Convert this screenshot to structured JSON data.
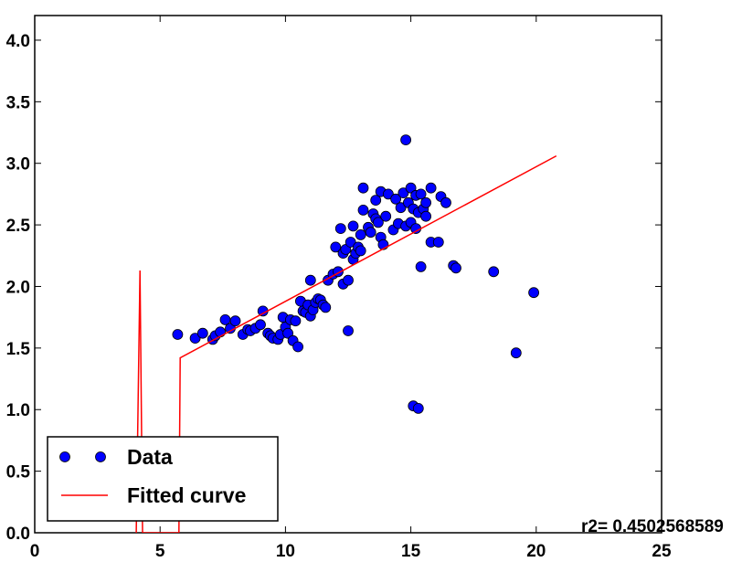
{
  "chart_data": {
    "type": "scatter",
    "title": "",
    "xlabel": "",
    "ylabel": "",
    "xlim": [
      0,
      25
    ],
    "ylim": [
      0.0,
      4.2
    ],
    "xticks": [
      0,
      5,
      10,
      15,
      20,
      25
    ],
    "xtick_labels": [
      "0",
      "5",
      "10",
      "15",
      "20",
      "25"
    ],
    "yticks": [
      0.0,
      0.5,
      1.0,
      1.5,
      2.0,
      2.5,
      3.0,
      3.5,
      4.0
    ],
    "ytick_labels": [
      "0.0",
      "0.5",
      "1.0",
      "1.5",
      "2.0",
      "2.5",
      "3.0",
      "3.5",
      "4.0"
    ],
    "grid": false,
    "legend": {
      "placement": "bottom-left",
      "entries": [
        {
          "label": "Data",
          "marker": "circle",
          "color": "#0000ff"
        },
        {
          "label": "Fitted curve",
          "marker": "line",
          "color": "#ff0000"
        }
      ]
    },
    "annotation": "r2= 0.4502568589",
    "series": [
      {
        "name": "Data",
        "kind": "scatter",
        "color": "#0000ff",
        "points": [
          [
            5.7,
            1.61
          ],
          [
            6.4,
            1.58
          ],
          [
            6.7,
            1.62
          ],
          [
            7.1,
            1.57
          ],
          [
            7.2,
            1.6
          ],
          [
            7.4,
            1.63
          ],
          [
            7.6,
            1.73
          ],
          [
            7.8,
            1.66
          ],
          [
            8.0,
            1.72
          ],
          [
            8.3,
            1.61
          ],
          [
            8.5,
            1.65
          ],
          [
            8.6,
            1.64
          ],
          [
            8.8,
            1.66
          ],
          [
            9.0,
            1.69
          ],
          [
            9.1,
            1.8
          ],
          [
            9.3,
            1.62
          ],
          [
            9.4,
            1.6
          ],
          [
            9.5,
            1.58
          ],
          [
            9.7,
            1.57
          ],
          [
            9.8,
            1.61
          ],
          [
            9.9,
            1.75
          ],
          [
            10.0,
            1.67
          ],
          [
            10.1,
            1.62
          ],
          [
            10.2,
            1.73
          ],
          [
            10.3,
            1.56
          ],
          [
            10.4,
            1.72
          ],
          [
            10.5,
            1.51
          ],
          [
            10.6,
            1.88
          ],
          [
            10.7,
            1.8
          ],
          [
            10.8,
            1.79
          ],
          [
            10.9,
            1.85
          ],
          [
            11.0,
            1.76
          ],
          [
            11.0,
            2.05
          ],
          [
            11.1,
            1.81
          ],
          [
            11.2,
            1.87
          ],
          [
            11.3,
            1.9
          ],
          [
            11.4,
            1.89
          ],
          [
            11.5,
            1.85
          ],
          [
            11.6,
            1.83
          ],
          [
            11.7,
            2.05
          ],
          [
            11.9,
            2.1
          ],
          [
            12.0,
            2.32
          ],
          [
            12.1,
            2.12
          ],
          [
            12.2,
            2.47
          ],
          [
            12.3,
            2.27
          ],
          [
            12.3,
            2.02
          ],
          [
            12.4,
            2.3
          ],
          [
            12.5,
            2.05
          ],
          [
            12.5,
            1.64
          ],
          [
            12.6,
            2.36
          ],
          [
            12.7,
            2.22
          ],
          [
            12.7,
            2.49
          ],
          [
            12.8,
            2.27
          ],
          [
            12.9,
            2.32
          ],
          [
            13.0,
            2.29
          ],
          [
            13.0,
            2.42
          ],
          [
            13.1,
            2.62
          ],
          [
            13.1,
            2.8
          ],
          [
            13.3,
            2.48
          ],
          [
            13.4,
            2.44
          ],
          [
            13.5,
            2.59
          ],
          [
            13.6,
            2.55
          ],
          [
            13.6,
            2.7
          ],
          [
            13.7,
            2.52
          ],
          [
            13.8,
            2.4
          ],
          [
            13.8,
            2.77
          ],
          [
            13.9,
            2.34
          ],
          [
            14.0,
            2.57
          ],
          [
            14.1,
            2.75
          ],
          [
            14.3,
            2.46
          ],
          [
            14.4,
            2.71
          ],
          [
            14.5,
            2.51
          ],
          [
            14.6,
            2.64
          ],
          [
            14.7,
            2.76
          ],
          [
            14.8,
            2.49
          ],
          [
            14.9,
            2.68
          ],
          [
            14.8,
            3.19
          ],
          [
            15.0,
            2.52
          ],
          [
            15.0,
            2.8
          ],
          [
            15.1,
            2.63
          ],
          [
            15.2,
            2.74
          ],
          [
            15.2,
            2.47
          ],
          [
            15.3,
            2.6
          ],
          [
            15.4,
            2.75
          ],
          [
            15.5,
            2.63
          ],
          [
            15.6,
            2.57
          ],
          [
            15.6,
            2.68
          ],
          [
            15.8,
            2.36
          ],
          [
            15.8,
            2.8
          ],
          [
            16.1,
            2.36
          ],
          [
            16.2,
            2.73
          ],
          [
            16.4,
            2.68
          ],
          [
            15.4,
            2.16
          ],
          [
            16.7,
            2.17
          ],
          [
            16.8,
            2.15
          ],
          [
            18.3,
            2.12
          ],
          [
            19.2,
            1.46
          ],
          [
            19.9,
            1.95
          ],
          [
            15.1,
            1.03
          ],
          [
            15.3,
            1.01
          ]
        ]
      },
      {
        "name": "Fitted curve",
        "kind": "line",
        "color": "#ff0000",
        "points": [
          [
            4.05,
            0.0
          ],
          [
            4.2,
            2.13
          ],
          [
            4.3,
            0.0
          ],
          [
            5.75,
            0.0
          ],
          [
            5.8,
            1.42
          ],
          [
            20.8,
            3.06
          ]
        ]
      }
    ]
  }
}
